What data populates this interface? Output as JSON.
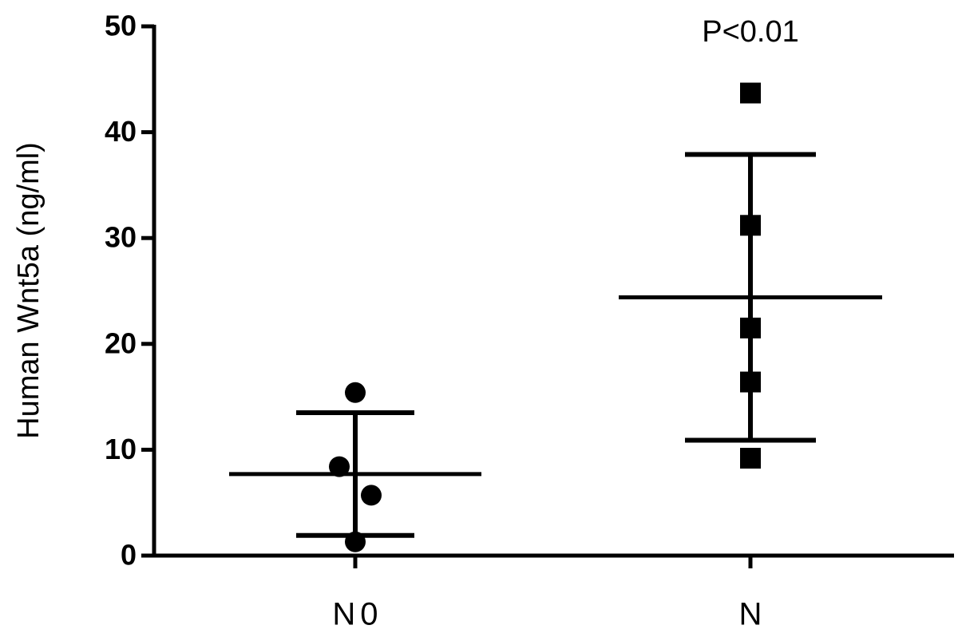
{
  "chart_data": {
    "type": "scatter",
    "y_label": "Human Wnt5a (ng/ml)",
    "annotation": "P<0.01",
    "categories": [
      "N0",
      "N"
    ],
    "series": [
      {
        "marker": "circle",
        "color": "#000000",
        "values": [
          15.4,
          8.4,
          5.7,
          1.3
        ],
        "mean": 7.7,
        "sd": 5.8
      },
      {
        "marker": "square",
        "color": "#000000",
        "values": [
          43.7,
          31.2,
          21.5,
          16.4,
          9.2
        ],
        "mean": 24.4,
        "sd": 13.5
      }
    ],
    "ylim": [
      0,
      50
    ],
    "yticks": [
      0,
      10,
      20,
      30,
      40,
      50
    ]
  }
}
